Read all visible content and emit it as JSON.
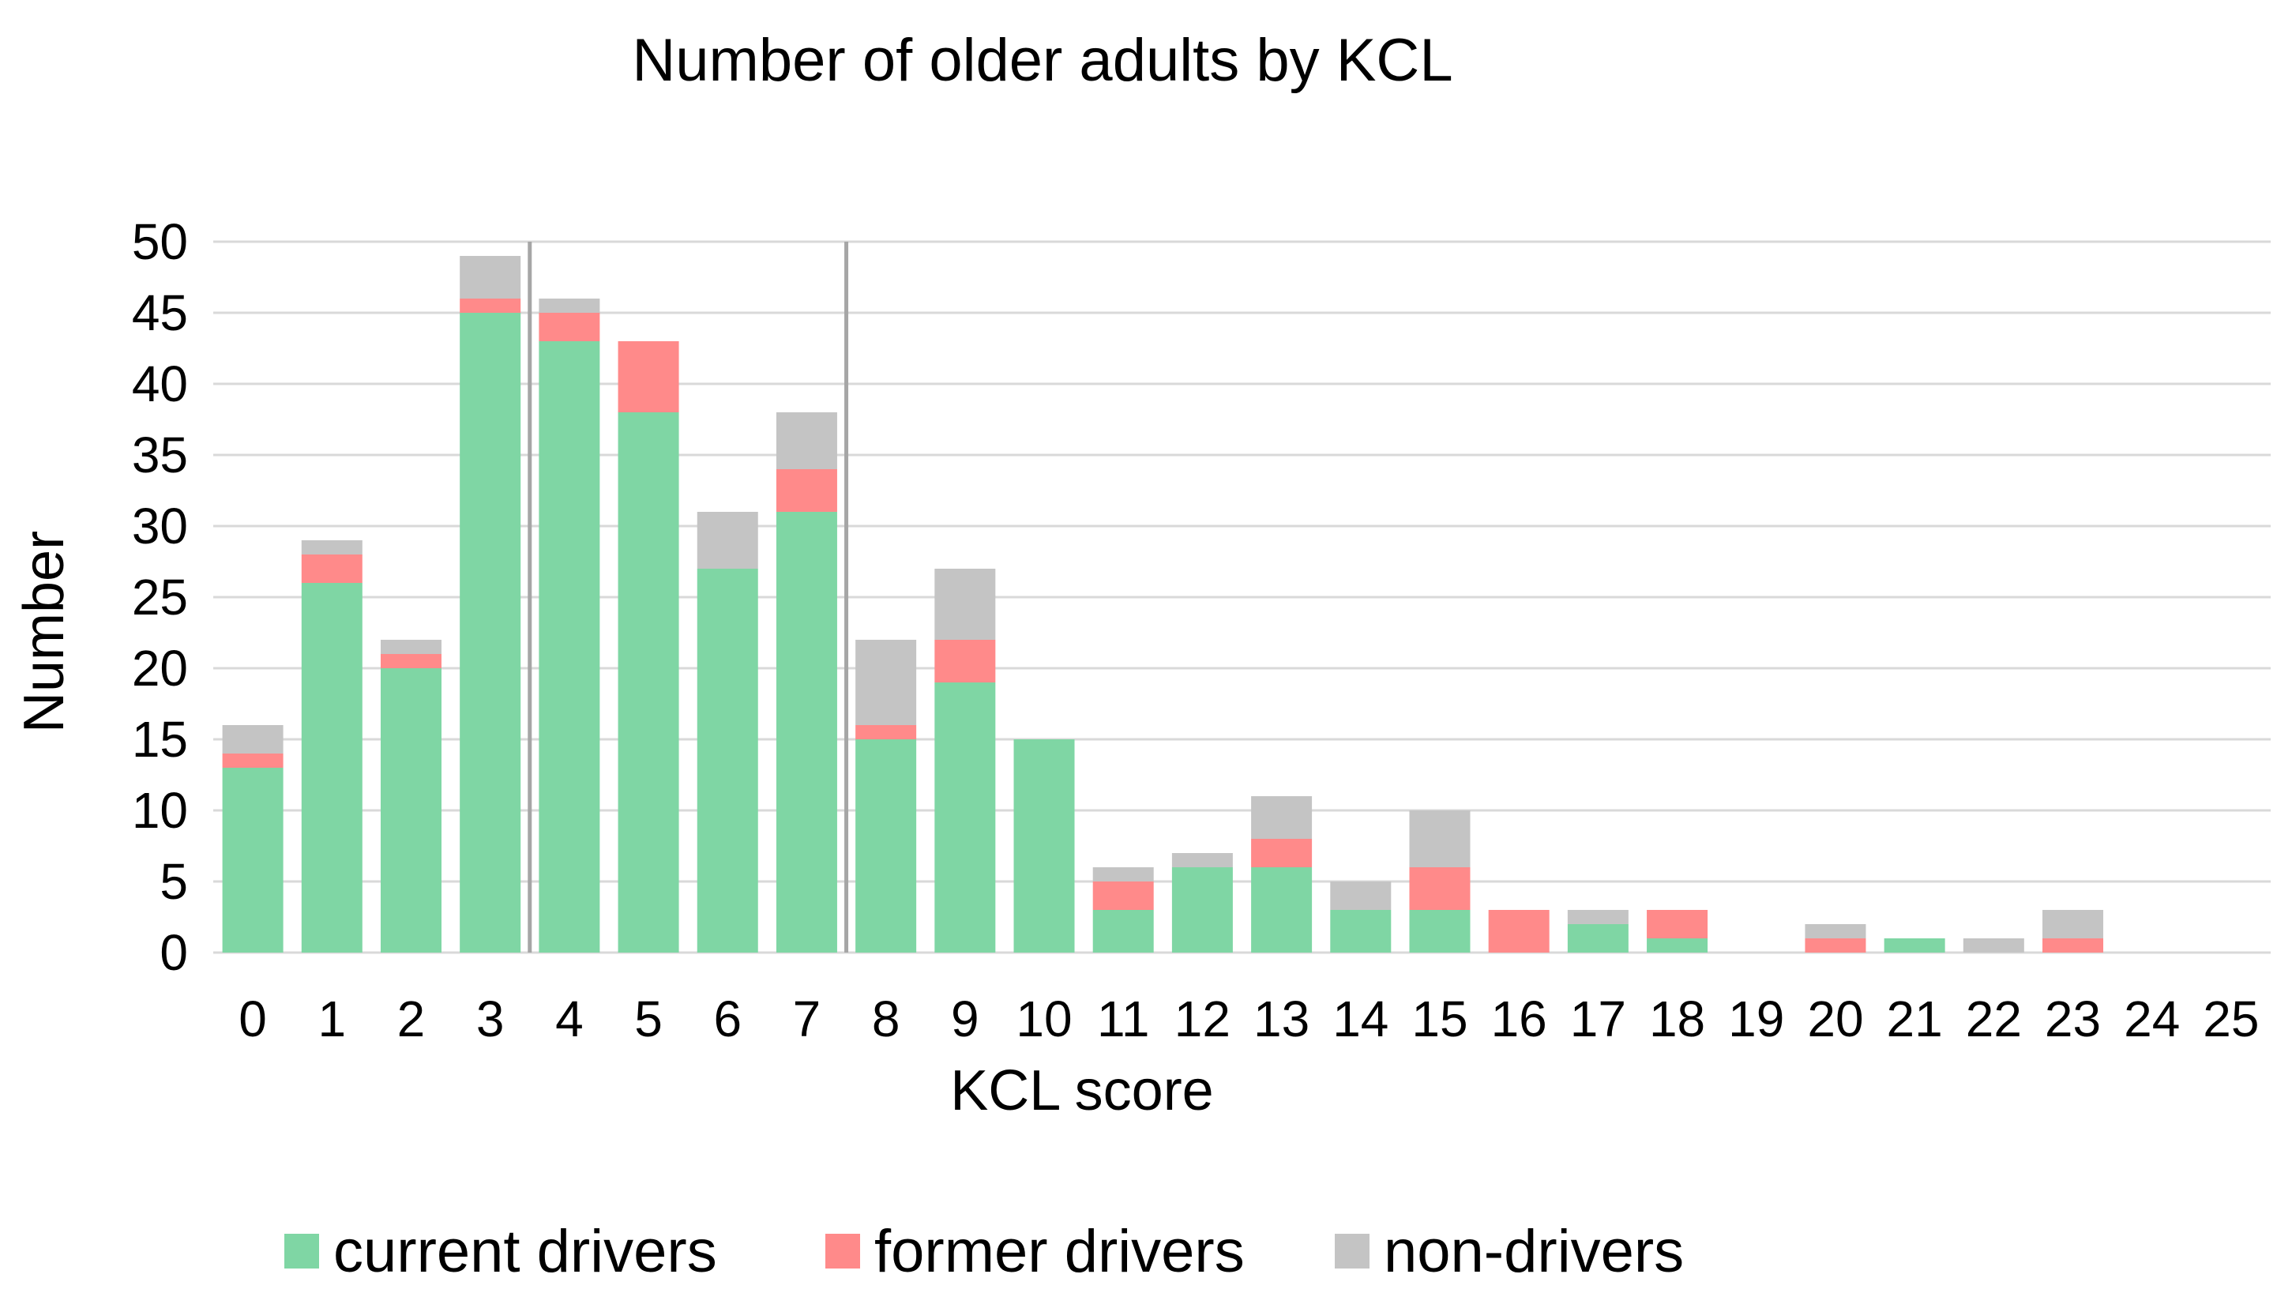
{
  "chart_data": {
    "type": "bar",
    "stacked": true,
    "title": "Number of older adults by KCL",
    "xlabel": "KCL score",
    "ylabel": "Number",
    "ylim": [
      0,
      50
    ],
    "yticks": [
      "0",
      "5",
      "10",
      "15",
      "20",
      "25",
      "30",
      "35",
      "40",
      "45",
      "50"
    ],
    "grid": true,
    "legend_position": "bottom",
    "categories": [
      "0",
      "1",
      "2",
      "3",
      "4",
      "5",
      "6",
      "7",
      "8",
      "9",
      "10",
      "11",
      "12",
      "13",
      "14",
      "15",
      "16",
      "17",
      "18",
      "19",
      "20",
      "21",
      "22",
      "23",
      "24",
      "25"
    ],
    "series": [
      {
        "name": "current drivers",
        "color": "#7fd6a4",
        "values": [
          13,
          26,
          20,
          45,
          43,
          38,
          27,
          31,
          15,
          19,
          15,
          3,
          6,
          6,
          3,
          3,
          0,
          2,
          1,
          0,
          0,
          1,
          0,
          0,
          0,
          0
        ]
      },
      {
        "name": "former drivers",
        "color": "#ff8a8a",
        "values": [
          1,
          2,
          1,
          1,
          2,
          5,
          0,
          3,
          1,
          3,
          0,
          2,
          0,
          2,
          0,
          3,
          3,
          0,
          2,
          0,
          1,
          0,
          0,
          1,
          0,
          0
        ]
      },
      {
        "name": "non-drivers",
        "color": "#c4c4c4",
        "values": [
          2,
          1,
          1,
          3,
          1,
          0,
          4,
          4,
          6,
          5,
          0,
          1,
          1,
          3,
          2,
          4,
          0,
          1,
          0,
          0,
          1,
          0,
          1,
          2,
          0,
          0
        ]
      }
    ],
    "reference_lines_between_scores": [
      [
        3,
        4
      ],
      [
        7,
        8
      ]
    ],
    "reference_line_color": "#a6a6a6",
    "grid_color": "#d9d9d9"
  }
}
